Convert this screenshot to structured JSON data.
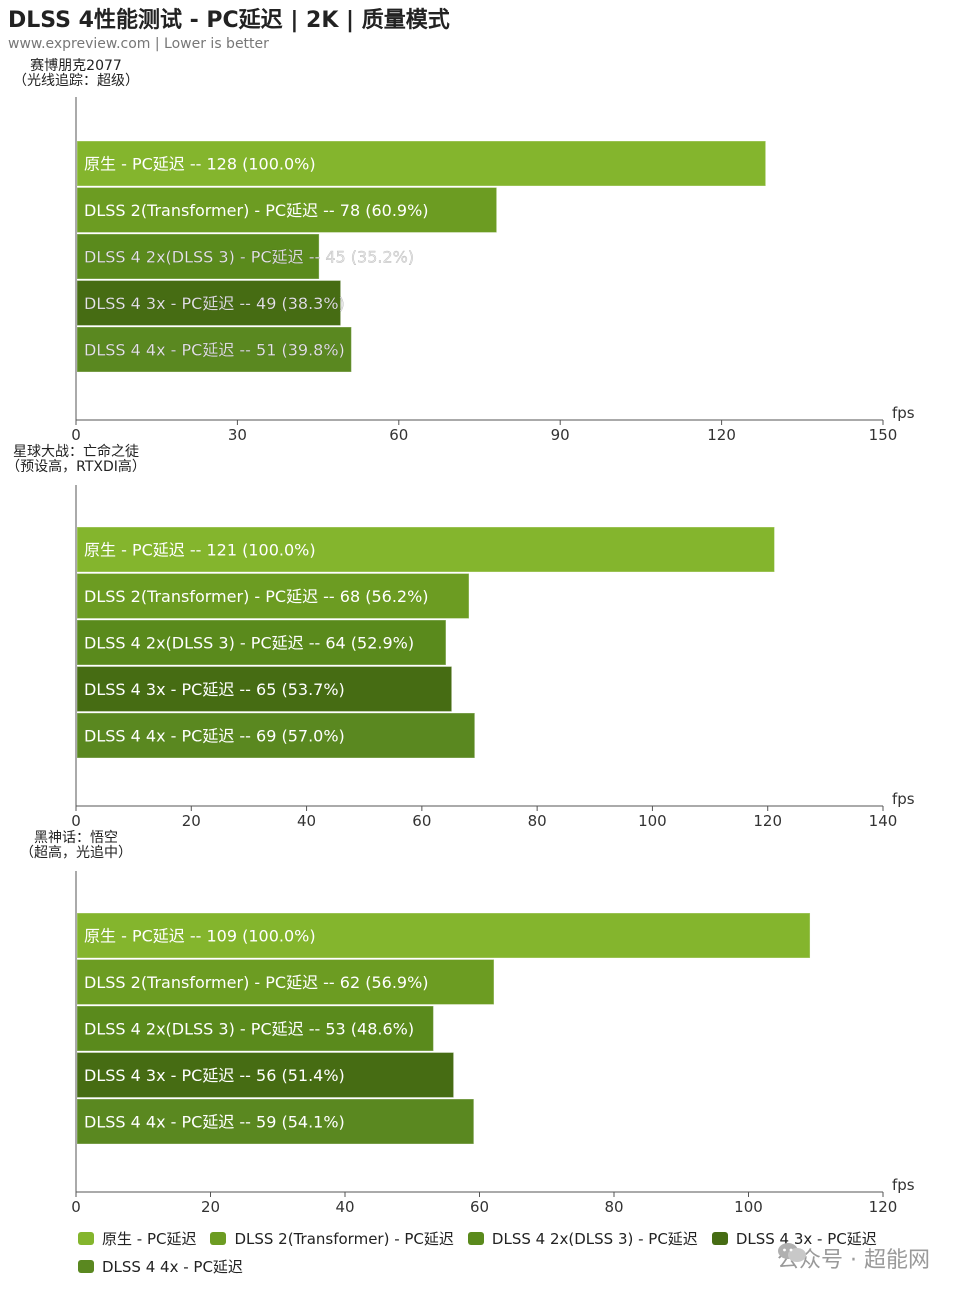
{
  "title": "DLSS 4性能测试 - PC延迟 | 2K | 质量模式",
  "subtitle": "www.expreview.com | Lower is better",
  "watermark": "公众号 · 超能网",
  "colors": {
    "native": "#84b52d",
    "dlss2": "#6c9c22",
    "dlss4_2x": "#5a8a1c",
    "dlss4_3x": "#466c13",
    "dlss4_4x": "#5a8820"
  },
  "chart_data": [
    {
      "type": "bar",
      "orientation": "horizontal",
      "group_label_line1": "赛博朋克2077",
      "group_label_line2": "（光线追踪：超级）",
      "xlabel": "fps",
      "xlim": [
        0,
        150
      ],
      "ticks": [
        0,
        30,
        60,
        90,
        120,
        150
      ],
      "series": [
        {
          "label": "原生 - PC延迟  --  128 (100.0%)",
          "value": 128
        },
        {
          "label": "DLSS 2(Transformer) - PC延迟  --  78 (60.9%)",
          "value": 78
        },
        {
          "label": "DLSS 4 2x(DLSS 3)  - PC延迟  --  45 (35.2%)",
          "value": 45
        },
        {
          "label": "DLSS 4 3x  - PC延迟  --  49 (38.3%)",
          "value": 49
        },
        {
          "label": "DLSS 4 4x  - PC延迟  --  51 (39.8%)",
          "value": 51
        }
      ]
    },
    {
      "type": "bar",
      "orientation": "horizontal",
      "group_label_line1": "星球大战：亡命之徒",
      "group_label_line2": "（预设高，RTXDI高）",
      "xlabel": "fps",
      "xlim": [
        0,
        140
      ],
      "ticks": [
        0,
        20,
        40,
        60,
        80,
        100,
        120,
        140
      ],
      "series": [
        {
          "label": "原生 - PC延迟  --  121 (100.0%)",
          "value": 121
        },
        {
          "label": "DLSS 2(Transformer) - PC延迟  --  68 (56.2%)",
          "value": 68
        },
        {
          "label": "DLSS 4 2x(DLSS 3)  - PC延迟  --  64 (52.9%)",
          "value": 64
        },
        {
          "label": "DLSS 4 3x  - PC延迟  --  65 (53.7%)",
          "value": 65
        },
        {
          "label": "DLSS 4 4x  - PC延迟  --  69 (57.0%)",
          "value": 69
        }
      ]
    },
    {
      "type": "bar",
      "orientation": "horizontal",
      "group_label_line1": "黑神话：悟空",
      "group_label_line2": "（超高，光追中）",
      "xlabel": "fps",
      "xlim": [
        0,
        120
      ],
      "ticks": [
        0,
        20,
        40,
        60,
        80,
        100,
        120
      ],
      "series": [
        {
          "label": "原生 - PC延迟  --  109 (100.0%)",
          "value": 109
        },
        {
          "label": "DLSS 2(Transformer) - PC延迟  --  62 (56.9%)",
          "value": 62
        },
        {
          "label": "DLSS 4 2x(DLSS 3)  - PC延迟  --  53 (48.6%)",
          "value": 53
        },
        {
          "label": "DLSS 4 3x  - PC延迟  --  56 (51.4%)",
          "value": 56
        },
        {
          "label": "DLSS 4 4x  - PC延迟  --  59 (54.1%)",
          "value": 59
        }
      ]
    }
  ],
  "legend": [
    {
      "label": "原生 - PC延迟",
      "color": "#84b52d"
    },
    {
      "label": "DLSS 2(Transformer) - PC延迟",
      "color": "#6c9c22"
    },
    {
      "label": "DLSS 4 2x(DLSS 3)  - PC延迟",
      "color": "#5a8a1c"
    },
    {
      "label": "DLSS 4 3x  - PC延迟",
      "color": "#466c13"
    },
    {
      "label": "DLSS 4 4x  - PC延迟",
      "color": "#5a8820"
    }
  ],
  "legend_position": "bottom"
}
